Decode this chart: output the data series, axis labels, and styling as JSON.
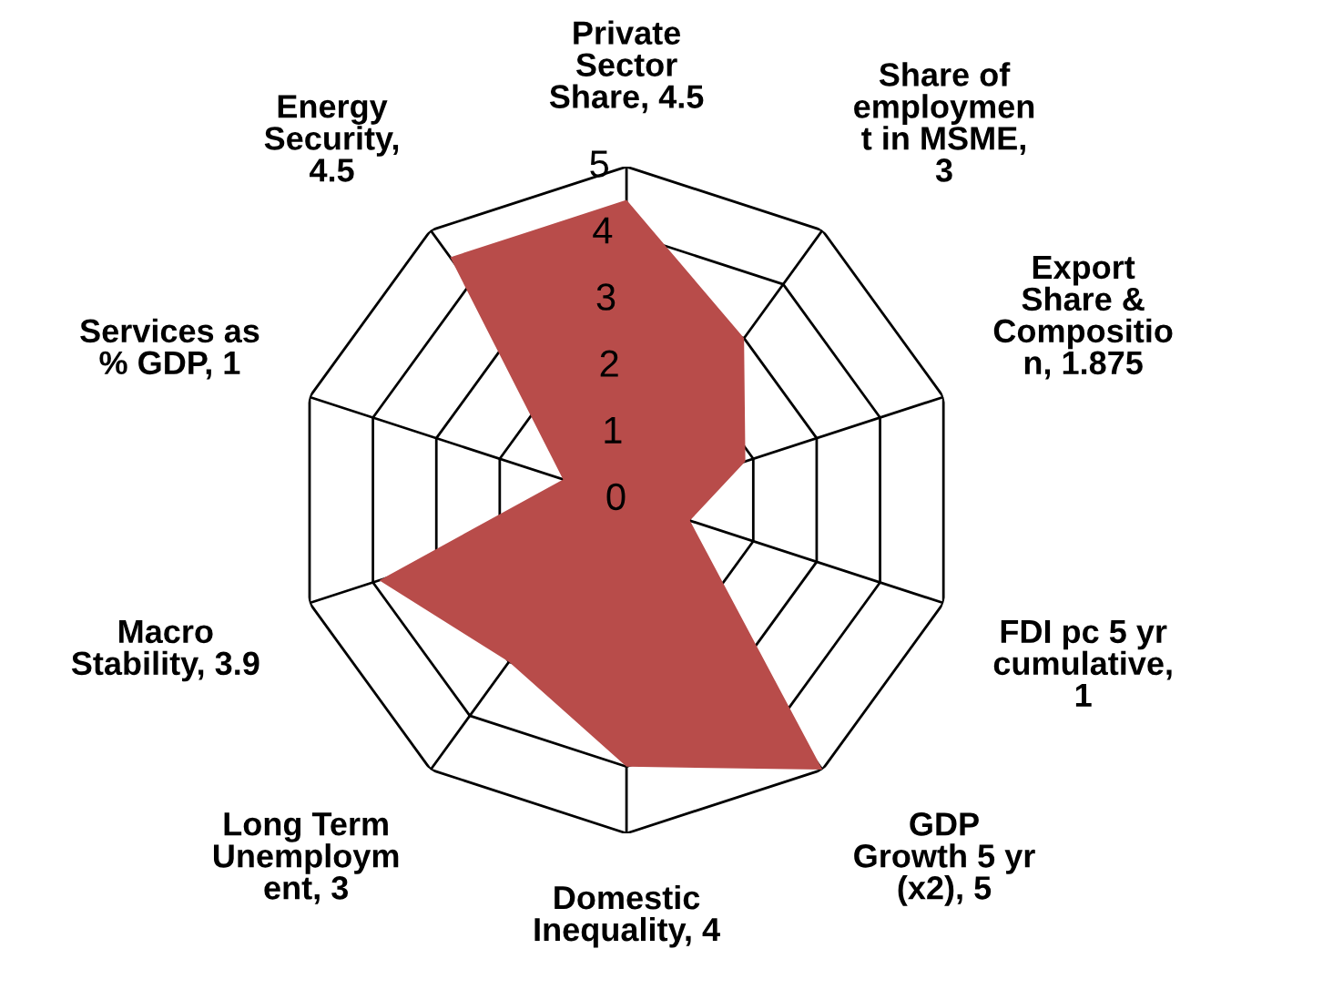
{
  "chart_data": {
    "type": "radar",
    "categories": [
      "Private\nSector\nShare, 4.5",
      "Share of\nemploymen\nt in MSME,\n3",
      "Export\nShare &\nCompositio\nn, 1.875",
      "FDI pc 5 yr\ncumulative,\n1",
      "GDP\nGrowth 5 yr\n(x2), 5",
      "Domestic\nInequality, 4",
      "Long Term\nUnemploym\nent, 3",
      "Macro\nStability, 3.9",
      "Services as\n% GDP, 1",
      "Energy\nSecurity,\n4.5"
    ],
    "series": [
      {
        "color": "#b84c4a",
        "values": [
          4.5,
          3,
          1.875,
          1,
          5,
          4,
          3,
          3.9,
          1,
          4.5
        ]
      }
    ],
    "ylim": [
      0,
      5
    ],
    "yticks": [
      0,
      1,
      2,
      3,
      4,
      5
    ],
    "grid": true
  }
}
